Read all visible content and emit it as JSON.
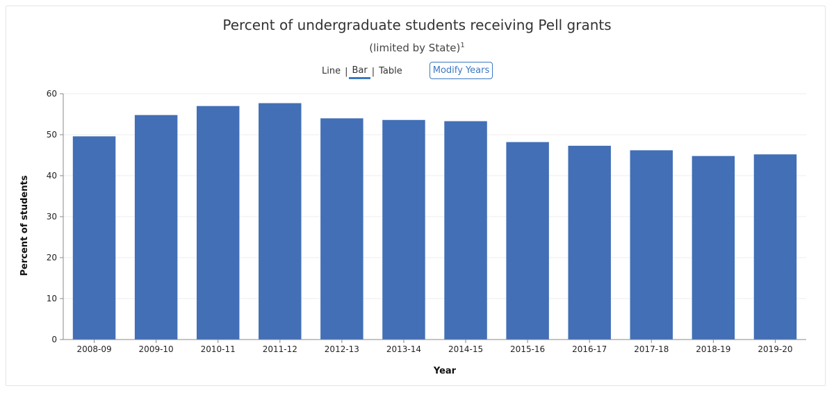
{
  "header": {
    "title": "Percent of undergraduate students receiving Pell grants",
    "subtitle": "(limited by State)",
    "footnote_marker": "1"
  },
  "view_options": {
    "line": "Line",
    "bar": "Bar",
    "table": "Table",
    "active": "Bar"
  },
  "modify_years_label": "Modify Years",
  "colors": {
    "bar": "#426fb6",
    "accent": "#3a78c3",
    "gridline": "#ececec"
  },
  "chart_data": {
    "type": "bar",
    "title": "Percent of undergraduate students receiving Pell grants",
    "subtitle": "(limited by State)",
    "xlabel": "Year",
    "ylabel": "Percent of students",
    "categories": [
      "2008-09",
      "2009-10",
      "2010-11",
      "2011-12",
      "2012-13",
      "2013-14",
      "2014-15",
      "2015-16",
      "2016-17",
      "2017-18",
      "2018-19",
      "2019-20"
    ],
    "values": [
      49.6,
      54.8,
      57.0,
      57.7,
      54.0,
      53.6,
      53.3,
      48.2,
      47.3,
      46.2,
      44.8,
      45.2
    ],
    "ylim": [
      0,
      60
    ],
    "yticks": [
      0,
      10,
      20,
      30,
      40,
      50,
      60
    ],
    "grid": true,
    "legend": "none"
  }
}
